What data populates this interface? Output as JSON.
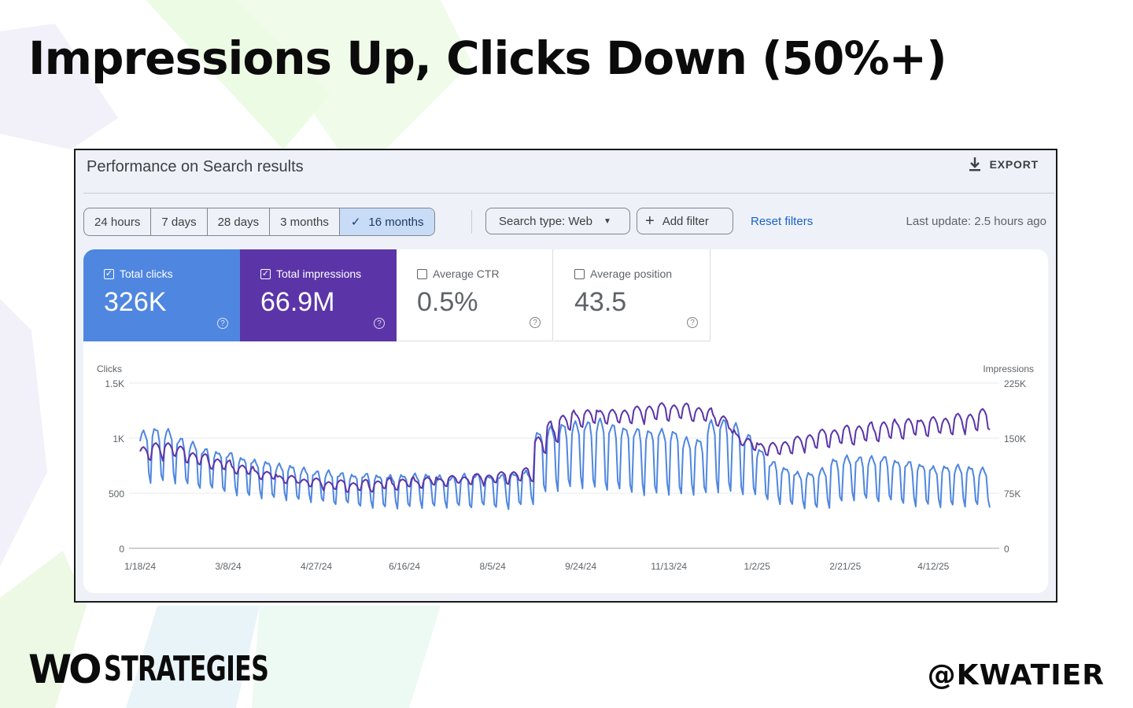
{
  "slide": {
    "title": "Impressions Up, Clicks Down (50%+)",
    "brand": "STRATEGIES",
    "brand_mark": "WO",
    "handle": "@KWATIER"
  },
  "panel": {
    "title": "Performance on Search results",
    "export_label": "EXPORT",
    "date_ranges": [
      "24 hours",
      "7 days",
      "28 days",
      "3 months",
      "16 months"
    ],
    "active_range": "16 months",
    "search_type": "Search type: Web",
    "add_filter": "Add filter",
    "reset_filters": "Reset filters",
    "last_update": "Last update: 2.5 hours ago",
    "metrics": [
      {
        "label": "Total clicks",
        "value": "326K",
        "checked": true
      },
      {
        "label": "Total impressions",
        "value": "66.9M",
        "checked": true
      },
      {
        "label": "Average CTR",
        "value": "0.5%",
        "checked": false
      },
      {
        "label": "Average position",
        "value": "43.5",
        "checked": false
      }
    ]
  },
  "colors": {
    "clicks": "#4f86e0",
    "impressions": "#5b35a8",
    "link": "#1a5fcc"
  },
  "chart_data": {
    "type": "line",
    "xlabel": "",
    "y_left_label": "Clicks",
    "y_right_label": "Impressions",
    "y_left_ticks": [
      "0",
      "500",
      "1K",
      "1.5K"
    ],
    "y_right_ticks": [
      "0",
      "75K",
      "150K",
      "225K"
    ],
    "ylim_left": [
      0,
      1500
    ],
    "ylim_right": [
      0,
      225000
    ],
    "x_tick_labels": [
      "1/18/24",
      "3/8/24",
      "4/27/24",
      "6/16/24",
      "8/5/24",
      "9/24/24",
      "11/13/24",
      "1/2/25",
      "2/21/25",
      "4/12/25"
    ],
    "x_range": [
      "1/18/24",
      "5/14/25"
    ],
    "grid": true,
    "series": [
      {
        "name": "Clicks",
        "axis": "left",
        "weekly_high": [
          1060,
          1080,
          1070,
          1000,
          950,
          900,
          880,
          860,
          820,
          800,
          780,
          760,
          740,
          720,
          700,
          690,
          680,
          670,
          670,
          660,
          660,
          660,
          670,
          660,
          650,
          650,
          660,
          670,
          660,
          660,
          680,
          700,
          1050,
          1100,
          1120,
          1140,
          1150,
          1160,
          1120,
          1100,
          1080,
          1070,
          1080,
          1060,
          1000,
          980,
          1150,
          1170,
          1120,
          1030,
          900,
          780,
          730,
          690,
          680,
          720,
          800,
          830,
          830,
          820,
          830,
          800,
          780,
          760,
          740,
          740,
          750,
          730,
          720,
          700,
          690,
          670,
          650,
          640
        ],
        "weekly_low": [
          580,
          580,
          570,
          550,
          530,
          510,
          500,
          480,
          460,
          450,
          440,
          430,
          420,
          410,
          400,
          390,
          380,
          370,
          370,
          360,
          360,
          360,
          360,
          360,
          360,
          360,
          360,
          360,
          360,
          360,
          380,
          400,
          480,
          500,
          520,
          520,
          510,
          500,
          490,
          480,
          470,
          470,
          470,
          460,
          470,
          470,
          480,
          470,
          460,
          440,
          420,
          400,
          380,
          360,
          350,
          360,
          400,
          420,
          420,
          410,
          400,
          390,
          380,
          380,
          370,
          370,
          370,
          370,
          360,
          360,
          350,
          350,
          340,
          340
        ]
      },
      {
        "name": "Impressions",
        "axis": "right",
        "weekly_level": [
          130000,
          132000,
          135000,
          128000,
          122000,
          118000,
          114000,
          110000,
          106000,
          102000,
          98000,
          95000,
          92000,
          90000,
          88000,
          86000,
          85000,
          84000,
          85000,
          86000,
          87000,
          88000,
          89000,
          90000,
          91000,
          92000,
          93000,
          94000,
          95000,
          96000,
          98000,
          100000,
          140000,
          158000,
          170000,
          176000,
          178000,
          180000,
          178000,
          180000,
          182000,
          185000,
          186000,
          186000,
          185000,
          182000,
          178000,
          170000,
          150000,
          140000,
          136000,
          134000,
          138000,
          142000,
          146000,
          150000,
          152000,
          154000,
          156000,
          158000,
          160000,
          162000,
          164000,
          165000,
          166000,
          167000,
          170000,
          172000,
          176000,
          180000,
          183000,
          182000,
          180000,
          175000
        ],
        "weekly_amplitude": [
          10000,
          10000,
          10000,
          9000,
          9000,
          8000,
          8000,
          7000,
          7000,
          7000,
          6000,
          6000,
          6000,
          6000,
          6000,
          6000,
          6000,
          6000,
          6000,
          6000,
          6000,
          6000,
          6000,
          6000,
          6000,
          6000,
          6000,
          6000,
          6000,
          6000,
          7000,
          7000,
          12000,
          12000,
          11000,
          10000,
          10000,
          10000,
          10000,
          10000,
          10000,
          10000,
          10000,
          10000,
          10000,
          10000,
          10000,
          10000,
          9000,
          9000,
          9000,
          9000,
          9000,
          9000,
          10000,
          10000,
          10000,
          11000,
          11000,
          11000,
          12000,
          12000,
          12000,
          12000,
          12000,
          12000,
          12000,
          12000,
          12000,
          12000,
          12000,
          12000,
          12000,
          12000
        ]
      }
    ]
  }
}
